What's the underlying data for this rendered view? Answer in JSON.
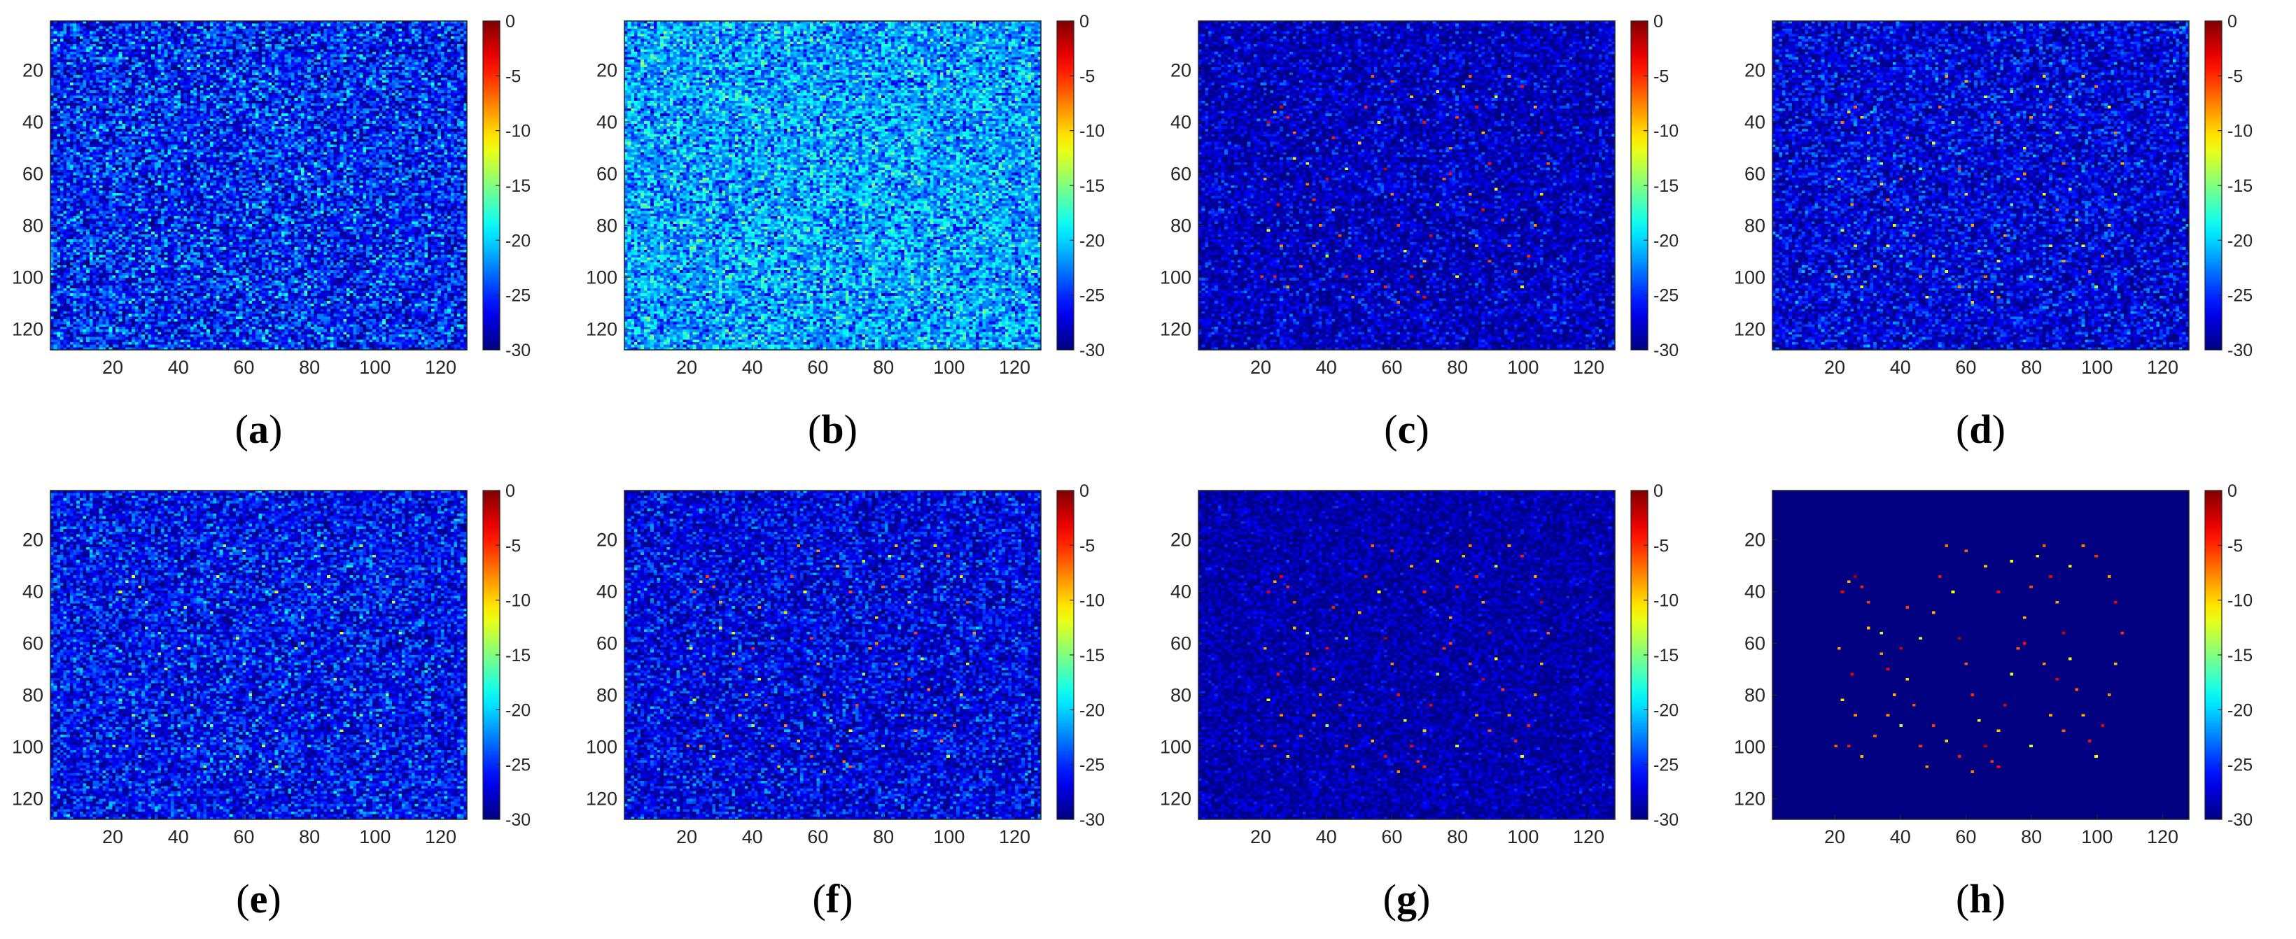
{
  "chart_data": [
    {
      "type": "heatmap",
      "panel": "a",
      "label": "a",
      "noise_floor": -25.5,
      "noise_spread": 3.2,
      "target_strength": 0.35,
      "seed": 11,
      "xticks": [
        "20",
        "40",
        "60",
        "80",
        "100",
        "120"
      ],
      "yticks": [
        "20",
        "40",
        "60",
        "80",
        "100",
        "120"
      ],
      "xlim": [
        1,
        128
      ],
      "ylim": [
        1,
        128
      ],
      "clim": [
        -30,
        0
      ],
      "colorbar_ticks": [
        "0",
        "-5",
        "-10",
        "-15",
        "-20",
        "-25",
        "-30"
      ]
    },
    {
      "type": "heatmap",
      "panel": "b",
      "label": "b",
      "noise_floor": -21.5,
      "noise_spread": 2.8,
      "target_strength": 0.15,
      "seed": 23,
      "xticks": [
        "20",
        "40",
        "60",
        "80",
        "100",
        "120"
      ],
      "yticks": [
        "20",
        "40",
        "60",
        "80",
        "100",
        "120"
      ],
      "xlim": [
        1,
        128
      ],
      "ylim": [
        1,
        128
      ],
      "clim": [
        -30,
        0
      ],
      "colorbar_ticks": [
        "0",
        "-5",
        "-10",
        "-15",
        "-20",
        "-25",
        "-30"
      ]
    },
    {
      "type": "heatmap",
      "panel": "c",
      "label": "c",
      "noise_floor": -28.2,
      "noise_spread": 2.3,
      "target_strength": 1.0,
      "seed": 37,
      "xticks": [
        "20",
        "40",
        "60",
        "80",
        "100",
        "120"
      ],
      "yticks": [
        "20",
        "40",
        "60",
        "80",
        "100",
        "120"
      ],
      "xlim": [
        1,
        128
      ],
      "ylim": [
        1,
        128
      ],
      "clim": [
        -30,
        0
      ],
      "colorbar_ticks": [
        "0",
        "-5",
        "-10",
        "-15",
        "-20",
        "-25",
        "-30"
      ]
    },
    {
      "type": "heatmap",
      "panel": "d",
      "label": "d",
      "noise_floor": -27.3,
      "noise_spread": 2.6,
      "target_strength": 0.85,
      "seed": 41,
      "xticks": [
        "20",
        "40",
        "60",
        "80",
        "100",
        "120"
      ],
      "yticks": [
        "20",
        "40",
        "60",
        "80",
        "100",
        "120"
      ],
      "xlim": [
        1,
        128
      ],
      "ylim": [
        1,
        128
      ],
      "clim": [
        -30,
        0
      ],
      "colorbar_ticks": [
        "0",
        "-5",
        "-10",
        "-15",
        "-20",
        "-25",
        "-30"
      ]
    },
    {
      "type": "heatmap",
      "panel": "e",
      "label": "e",
      "noise_floor": -26.3,
      "noise_spread": 2.8,
      "target_strength": 0.6,
      "seed": 53,
      "xticks": [
        "20",
        "40",
        "60",
        "80",
        "100",
        "120"
      ],
      "yticks": [
        "20",
        "40",
        "60",
        "80",
        "100",
        "120"
      ],
      "xlim": [
        1,
        128
      ],
      "ylim": [
        1,
        128
      ],
      "clim": [
        -30,
        0
      ],
      "colorbar_ticks": [
        "0",
        "-5",
        "-10",
        "-15",
        "-20",
        "-25",
        "-30"
      ]
    },
    {
      "type": "heatmap",
      "panel": "f",
      "label": "f",
      "noise_floor": -27.0,
      "noise_spread": 2.6,
      "target_strength": 0.9,
      "seed": 67,
      "xticks": [
        "20",
        "40",
        "60",
        "80",
        "100",
        "120"
      ],
      "yticks": [
        "20",
        "40",
        "60",
        "80",
        "100",
        "120"
      ],
      "xlim": [
        1,
        128
      ],
      "ylim": [
        1,
        128
      ],
      "clim": [
        -30,
        0
      ],
      "colorbar_ticks": [
        "0",
        "-5",
        "-10",
        "-15",
        "-20",
        "-25",
        "-30"
      ]
    },
    {
      "type": "heatmap",
      "panel": "g",
      "label": "g",
      "noise_floor": -28.8,
      "noise_spread": 1.6,
      "target_strength": 1.0,
      "seed": 79,
      "xticks": [
        "20",
        "40",
        "60",
        "80",
        "100",
        "120"
      ],
      "yticks": [
        "20",
        "40",
        "60",
        "80",
        "100",
        "120"
      ],
      "xlim": [
        1,
        128
      ],
      "ylim": [
        1,
        128
      ],
      "clim": [
        -30,
        0
      ],
      "colorbar_ticks": [
        "0",
        "-5",
        "-10",
        "-15",
        "-20",
        "-25",
        "-30"
      ]
    },
    {
      "type": "heatmap",
      "panel": "h",
      "label": "h",
      "noise_floor": -30.0,
      "noise_spread": 0.0,
      "target_strength": 1.0,
      "seed": 97,
      "xticks": [
        "20",
        "40",
        "60",
        "80",
        "100",
        "120"
      ],
      "yticks": [
        "20",
        "40",
        "60",
        "80",
        "100",
        "120"
      ],
      "xlim": [
        1,
        128
      ],
      "ylim": [
        1,
        128
      ],
      "clim": [
        -30,
        0
      ],
      "colorbar_ticks": [
        "0",
        "-5",
        "-10",
        "-15",
        "-20",
        "-25",
        "-30"
      ]
    }
  ],
  "targets": [
    [
      22,
      40,
      -3
    ],
    [
      24,
      36,
      -8
    ],
    [
      26,
      34,
      -2
    ],
    [
      28,
      38,
      -5
    ],
    [
      30,
      44,
      -6
    ],
    [
      21,
      62,
      -9
    ],
    [
      25,
      72,
      -4
    ],
    [
      22,
      82,
      -11
    ],
    [
      26,
      88,
      -7
    ],
    [
      24,
      100,
      -5
    ],
    [
      28,
      104,
      -9
    ],
    [
      32,
      96,
      -6
    ],
    [
      34,
      56,
      -12
    ],
    [
      36,
      70,
      -4
    ],
    [
      38,
      80,
      -8
    ],
    [
      40,
      62,
      -3
    ],
    [
      42,
      74,
      -10
    ],
    [
      44,
      84,
      -6
    ],
    [
      40,
      92,
      -14
    ],
    [
      46,
      100,
      -5
    ],
    [
      48,
      108,
      -8
    ],
    [
      50,
      48,
      -9
    ],
    [
      52,
      34,
      -4
    ],
    [
      54,
      22,
      -6
    ],
    [
      56,
      40,
      -11
    ],
    [
      58,
      58,
      -2
    ],
    [
      60,
      68,
      -7
    ],
    [
      62,
      80,
      -5
    ],
    [
      64,
      90,
      -12
    ],
    [
      66,
      100,
      -3
    ],
    [
      68,
      106,
      -6
    ],
    [
      70,
      94,
      -9
    ],
    [
      72,
      84,
      -4
    ],
    [
      74,
      72,
      -13
    ],
    [
      76,
      62,
      -6
    ],
    [
      78,
      50,
      -8
    ],
    [
      80,
      38,
      -5
    ],
    [
      82,
      26,
      -10
    ],
    [
      84,
      22,
      -7
    ],
    [
      86,
      34,
      -4
    ],
    [
      88,
      44,
      -9
    ],
    [
      90,
      56,
      -3
    ],
    [
      92,
      66,
      -11
    ],
    [
      94,
      78,
      -6
    ],
    [
      96,
      88,
      -8
    ],
    [
      98,
      98,
      -5
    ],
    [
      100,
      104,
      -12
    ],
    [
      102,
      92,
      -4
    ],
    [
      104,
      80,
      -7
    ],
    [
      106,
      68,
      -10
    ],
    [
      108,
      56,
      -6
    ],
    [
      106,
      44,
      -3
    ],
    [
      104,
      34,
      -9
    ],
    [
      100,
      26,
      -5
    ],
    [
      96,
      22,
      -8
    ],
    [
      92,
      30,
      -12
    ],
    [
      60,
      24,
      -6
    ],
    [
      66,
      30,
      -9
    ],
    [
      70,
      40,
      -4
    ],
    [
      74,
      28,
      -11
    ],
    [
      78,
      60,
      -5
    ],
    [
      84,
      68,
      -8
    ],
    [
      88,
      74,
      -3
    ],
    [
      30,
      54,
      -10
    ],
    [
      34,
      64,
      -7
    ],
    [
      50,
      92,
      -6
    ],
    [
      54,
      98,
      -9
    ],
    [
      58,
      104,
      -4
    ],
    [
      62,
      110,
      -7
    ],
    [
      46,
      58,
      -13
    ],
    [
      42,
      46,
      -5
    ],
    [
      86,
      88,
      -9
    ],
    [
      90,
      94,
      -6
    ],
    [
      80,
      100,
      -12
    ],
    [
      70,
      108,
      -4
    ],
    [
      36,
      88,
      -8
    ],
    [
      20,
      100,
      -6
    ]
  ]
}
